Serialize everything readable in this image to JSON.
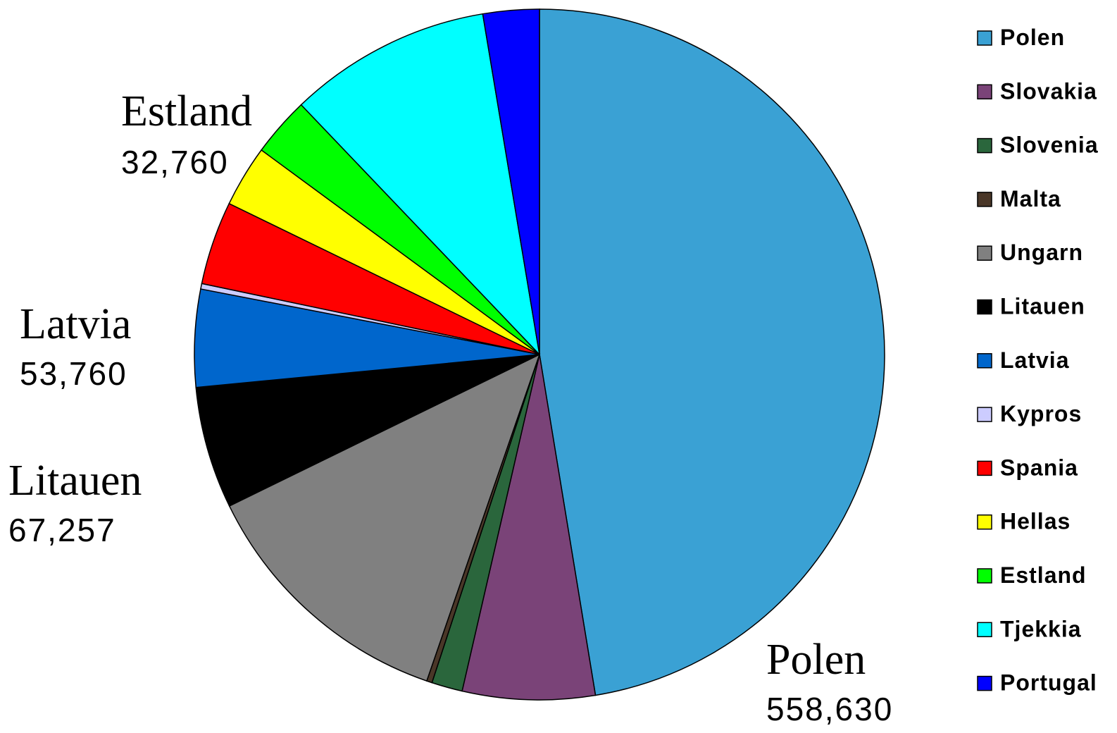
{
  "chart_data": {
    "type": "pie",
    "start_angle_deg": 0,
    "direction": "clockwise",
    "slices": [
      {
        "label": "Polen",
        "value": 558630,
        "color": "#3AA1D4"
      },
      {
        "label": "Slovakia",
        "value": 73000,
        "color": "#7A4378"
      },
      {
        "label": "Slovenia",
        "value": 17000,
        "color": "#2A663C"
      },
      {
        "label": "Malta",
        "value": 3000,
        "color": "#4A3728"
      },
      {
        "label": "Ungarn",
        "value": 147000,
        "color": "#808080"
      },
      {
        "label": "Litauen",
        "value": 67257,
        "color": "#000000"
      },
      {
        "label": "Latvia",
        "value": 53760,
        "color": "#0066CC"
      },
      {
        "label": "Kypros",
        "value": 3000,
        "color": "#CCCCFF"
      },
      {
        "label": "Spania",
        "value": 46000,
        "color": "#FF0000"
      },
      {
        "label": "Hellas",
        "value": 34000,
        "color": "#FFFF00"
      },
      {
        "label": "Estland",
        "value": 32760,
        "color": "#00FF00"
      },
      {
        "label": "Tjekkia",
        "value": 112000,
        "color": "#00FFFF"
      },
      {
        "label": "Portugal",
        "value": 31000,
        "color": "#0000FF"
      }
    ],
    "legend_position": "right",
    "callouts": [
      {
        "name": "Polen",
        "value": "558,630"
      },
      {
        "name": "Estland",
        "value": "32,760"
      },
      {
        "name": "Latvia",
        "value": "53,760"
      },
      {
        "name": "Litauen",
        "value": "67,257"
      }
    ]
  }
}
